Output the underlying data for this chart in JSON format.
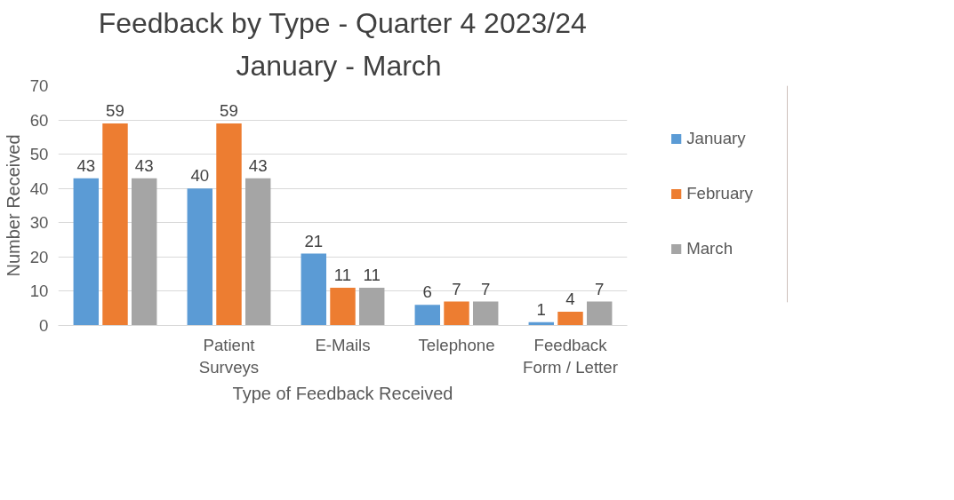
{
  "chart_data": {
    "type": "bar",
    "title": "Feedback by Type - Quarter 4 2023/24",
    "subtitle": "January  - March",
    "xlabel": "Type of Feedback Received",
    "ylabel": "Number Received",
    "categories": [
      null,
      "Patient\nSurveys",
      "E-Mails",
      "Telephone",
      "Feedback\nForm / Letter"
    ],
    "series": [
      {
        "name": "January",
        "color": "#5b9bd5",
        "values": [
          43,
          40,
          21,
          6,
          1
        ]
      },
      {
        "name": "February",
        "color": "#ed7d31",
        "values": [
          59,
          59,
          11,
          7,
          4
        ]
      },
      {
        "name": "March",
        "color": "#a5a5a5",
        "values": [
          43,
          43,
          11,
          7,
          7
        ]
      }
    ],
    "ylim": [
      0,
      70
    ],
    "yticks": [
      0,
      10,
      20,
      30,
      40,
      50,
      60,
      70
    ],
    "grid": "y",
    "legend": "right",
    "data_labels": true
  }
}
